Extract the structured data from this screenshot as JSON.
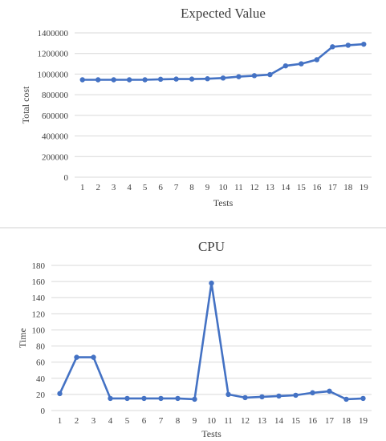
{
  "chart_data": [
    {
      "type": "line",
      "title": "Expected Value",
      "xlabel": "Tests",
      "ylabel": "Total cost",
      "x": [
        1,
        2,
        3,
        4,
        5,
        6,
        7,
        8,
        9,
        10,
        11,
        12,
        13,
        14,
        15,
        16,
        17,
        18,
        19
      ],
      "y_ticks": [
        "0",
        "200000",
        "400000",
        "600000",
        "800000",
        "1000000",
        "1200000",
        "1400000"
      ],
      "ylim": [
        0,
        1400000
      ],
      "grid": true,
      "series": [
        {
          "color": "#4472c4",
          "values": [
            945000,
            945000,
            945000,
            945000,
            945000,
            950000,
            952000,
            952000,
            955000,
            962000,
            975000,
            985000,
            995000,
            1080000,
            1100000,
            1140000,
            1265000,
            1280000,
            1290000
          ]
        }
      ]
    },
    {
      "type": "line",
      "title": "CPU",
      "xlabel": "Tests",
      "ylabel": "Time",
      "x": [
        1,
        2,
        3,
        4,
        5,
        6,
        7,
        8,
        9,
        10,
        11,
        12,
        13,
        14,
        15,
        16,
        17,
        18,
        19
      ],
      "y_ticks": [
        "0",
        "20",
        "40",
        "60",
        "80",
        "100",
        "120",
        "140",
        "160",
        "180"
      ],
      "ylim": [
        0,
        180
      ],
      "grid": true,
      "series": [
        {
          "color": "#4472c4",
          "values": [
            21,
            66,
            66,
            15,
            15,
            15,
            15,
            15,
            14,
            158,
            20,
            16,
            17,
            18,
            19,
            22,
            24,
            14,
            15
          ]
        }
      ]
    }
  ]
}
